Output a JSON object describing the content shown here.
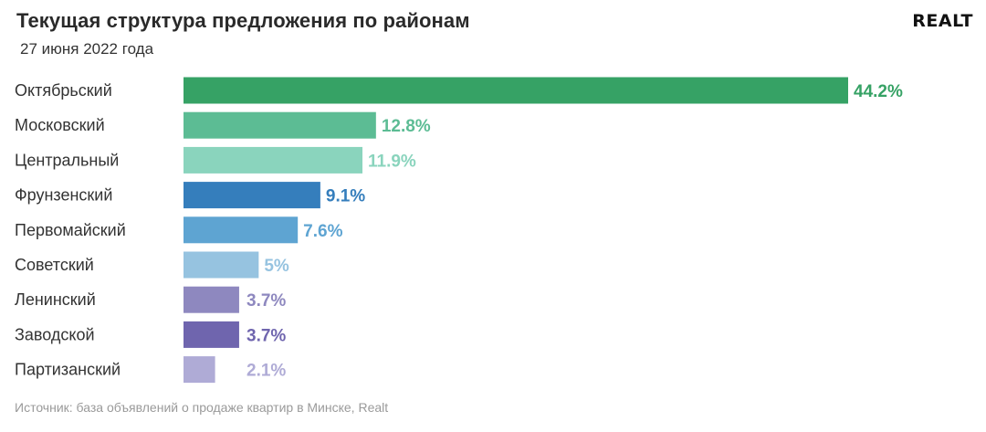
{
  "header": {
    "title": "Текущая структура предложения по районам",
    "subtitle": "27 июня 2022 года",
    "logo_text": "REALT"
  },
  "footer": {
    "source": "Источник: база объявлений о продаже квартир в Минске, Realt"
  },
  "chart_data": {
    "type": "bar",
    "orientation": "horizontal",
    "title": "Текущая структура предложения по районам",
    "subtitle": "27 июня 2022 года",
    "categories": [
      "Октябрьский",
      "Московский",
      "Центральный",
      "Фрунзенский",
      "Первомайский",
      "Советский",
      "Ленинский",
      "Заводской",
      "Партизанский"
    ],
    "values": [
      44.2,
      12.8,
      11.9,
      9.1,
      7.6,
      5,
      3.7,
      3.7,
      2.1
    ],
    "value_labels": [
      "44.2%",
      "12.8%",
      "11.9%",
      "9.1%",
      "7.6%",
      "5%",
      "3.7%",
      "3.7%",
      "2.1%"
    ],
    "colors": [
      "#36a265",
      "#5cbc94",
      "#8ad4bd",
      "#357ebc",
      "#5ea4d2",
      "#96c3e0",
      "#8e88bf",
      "#6f65ae",
      "#afabd6"
    ],
    "label_colors": [
      "#36a265",
      "#5cbc94",
      "#8ad4bd",
      "#357ebc",
      "#5ea4d2",
      "#96c3e0",
      "#8e88bf",
      "#6f65ae",
      "#afabd6"
    ],
    "unit": "%",
    "xlim": [
      0,
      44.2
    ],
    "grid": false,
    "legend": "none"
  }
}
